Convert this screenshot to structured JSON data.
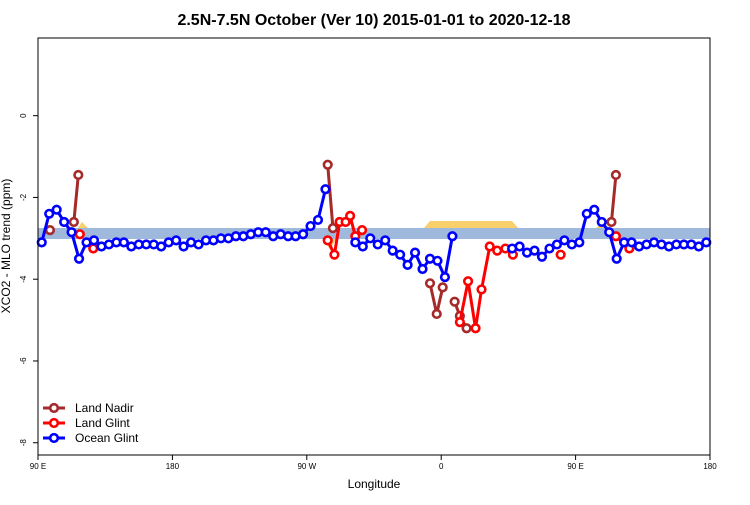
{
  "chart_data": {
    "type": "line",
    "title": "2.5N-7.5N October (Ver 10)   2015-01-01 to 2020-12-18",
    "x_label": "Longitude",
    "y_label": "XCO2 - MLO trend (ppm)",
    "xlim": [
      90,
      540
    ],
    "ylim": [
      -8.3,
      1.9
    ],
    "xticks": [
      {
        "value": 90,
        "label": "90 E"
      },
      180,
      {
        "value": 270,
        "label": "90 W"
      },
      {
        "value": 360,
        "label": "0"
      },
      {
        "value": 450,
        "label": "90 E"
      },
      {
        "value": 540,
        "label": "180"
      }
    ],
    "yticks": [
      -8,
      -6,
      -4,
      -2,
      0
    ],
    "legend": "bottom-left",
    "series": [
      {
        "name": "Land Nadir",
        "color": "#a52a2a",
        "x": [
          98,
          105,
          114,
          117,
          200,
          284,
          287.5,
          292,
          320,
          352.5,
          357,
          361,
          365,
          369,
          372.5,
          377,
          420,
          474,
          477
        ],
        "values": [
          -2.8,
          null,
          -2.6,
          -1.45,
          null,
          -1.2,
          -2.75,
          -2.6,
          null,
          -4.1,
          -4.85,
          -4.2,
          null,
          -4.55,
          -4.9,
          -5.2,
          null,
          -2.6,
          -1.45
        ]
      },
      {
        "name": "Land Glint",
        "color": "#ff0000",
        "x": [
          118,
          122,
          127,
          200,
          284,
          288.5,
          292,
          296,
          299,
          302.5,
          307,
          330,
          372.5,
          378,
          383,
          387,
          392.5,
          397.5,
          403,
          408,
          440,
          440,
          470,
          477,
          486
        ],
        "values": [
          -2.9,
          null,
          -3.25,
          null,
          -3.05,
          -3.4,
          -2.6,
          -2.6,
          -2.45,
          -2.95,
          -2.8,
          null,
          -5.05,
          -4.05,
          -5.2,
          -4.25,
          -3.2,
          -3.3,
          -3.25,
          -3.4,
          null,
          -3.4,
          null,
          -2.95,
          -3.25
        ]
      },
      {
        "name": "Ocean Glint",
        "color": "#0000ff",
        "x": [
          92.5,
          97.5,
          102.5,
          107.5,
          112.5,
          117.5,
          122.5,
          127.5,
          132.5,
          137.5,
          142.5,
          147.5,
          152.5,
          157.5,
          162.5,
          167.5,
          172.5,
          177.5,
          182.5,
          187.5,
          192.5,
          197.5,
          202.5,
          207.5,
          212.5,
          217.5,
          222.5,
          227.5,
          232.5,
          237.5,
          242.5,
          247.5,
          252.5,
          257.5,
          262.5,
          267.5,
          272.5,
          277.5,
          282.5,
          292.5,
          302.5,
          307.5,
          312.5,
          317.5,
          322.5,
          327.5,
          332.5,
          337.5,
          342.5,
          347.5,
          352.5,
          357.5,
          362.5,
          367.5,
          387.5,
          407.5,
          412.5,
          417.5,
          422.5,
          427.5,
          432.5,
          437.5,
          442.5,
          447.5,
          452.5,
          457.5,
          462.5,
          467.5,
          472.5,
          477.5,
          482.5,
          487.5,
          492.5,
          497.5,
          502.5,
          507.5,
          512.5,
          517.5,
          522.5,
          527.5,
          532.5,
          537.5
        ],
        "values": [
          -3.1,
          -2.4,
          -2.3,
          -2.6,
          -2.85,
          -3.5,
          -3.1,
          -3.05,
          -3.2,
          -3.15,
          -3.1,
          -3.1,
          -3.2,
          -3.15,
          -3.15,
          -3.15,
          -3.2,
          -3.1,
          -3.05,
          -3.2,
          -3.1,
          -3.15,
          -3.05,
          -3.05,
          -3.0,
          -3.0,
          -2.95,
          -2.95,
          -2.9,
          -2.85,
          -2.85,
          -2.95,
          -2.9,
          -2.95,
          -2.95,
          -2.9,
          -2.7,
          -2.55,
          -1.8,
          null,
          -3.1,
          -3.2,
          -3.0,
          -3.15,
          -3.05,
          -3.3,
          -3.4,
          -3.65,
          -3.35,
          -3.75,
          -3.5,
          -3.55,
          -3.95,
          -2.95,
          null,
          -3.25,
          -3.2,
          -3.35,
          -3.3,
          -3.45,
          -3.25,
          -3.15,
          -3.05,
          -3.15,
          -3.1,
          -2.4,
          -2.3,
          -2.6,
          -2.85,
          -3.5,
          -3.1,
          -3.1,
          -3.2,
          -3.15,
          -3.1,
          -3.15,
          -3.2,
          -3.15,
          -3.15,
          -3.15,
          -3.2,
          -3.1
        ]
      }
    ]
  }
}
